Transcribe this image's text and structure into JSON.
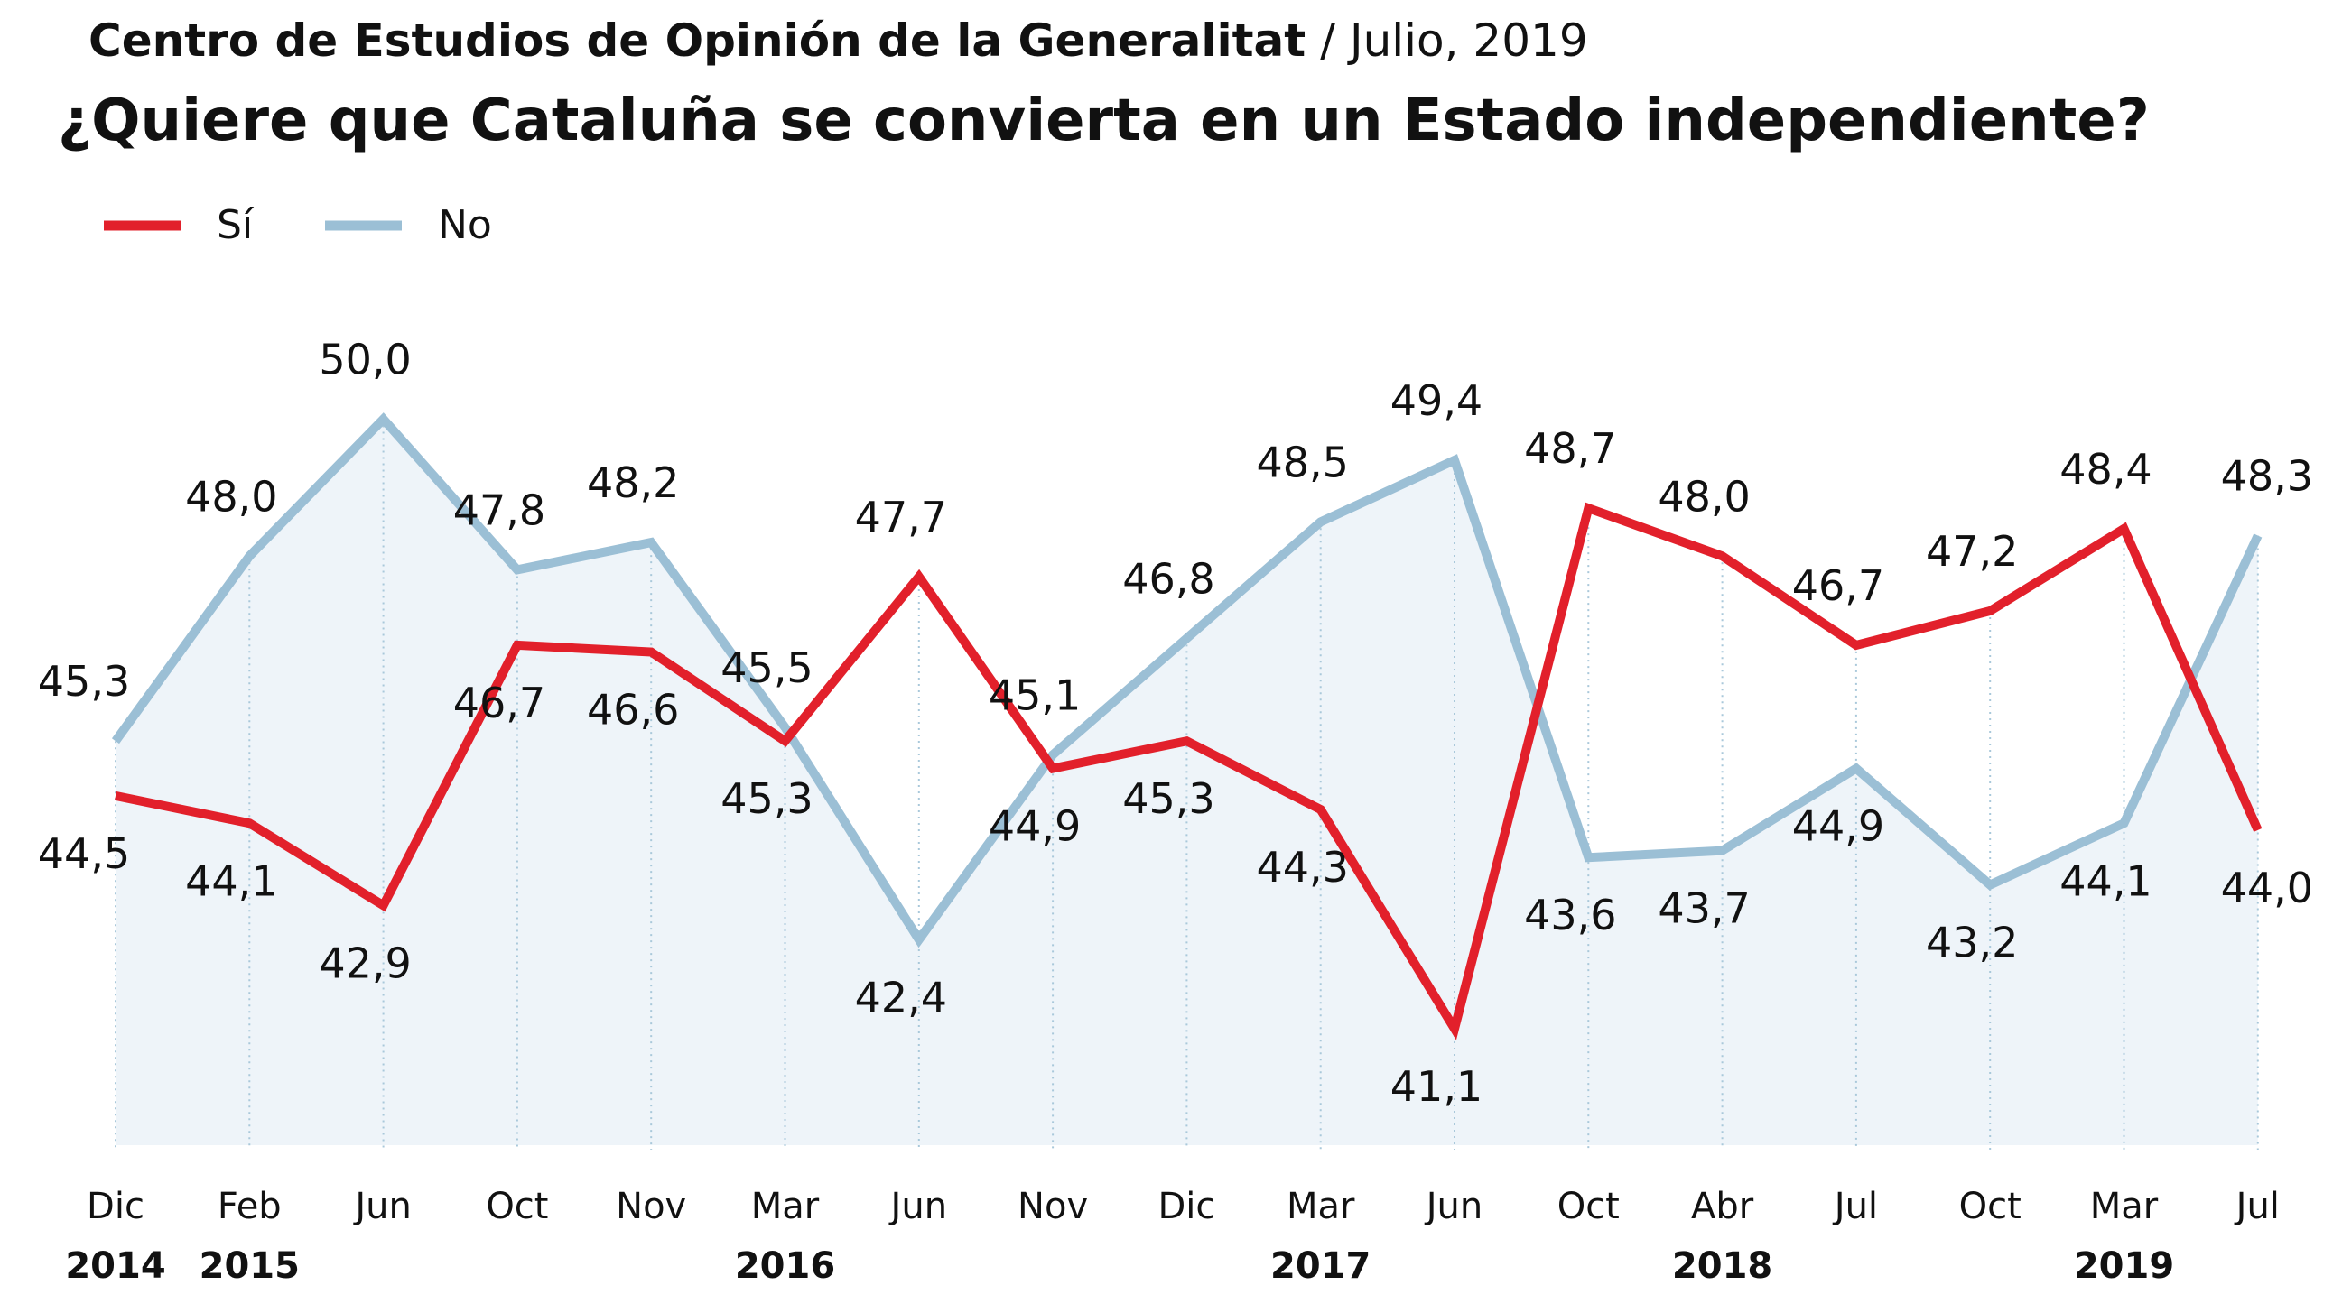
{
  "header": {
    "source": "Centro de Estudios de Opinión de la Generalitat",
    "date": " / Julio, 2019",
    "question": "¿Quiere que Cataluña se convierta en un Estado independiente?"
  },
  "chart_data": {
    "type": "line",
    "title": "¿Quiere que Cataluña se convierta en un Estado independiente?",
    "categories": [
      "Dic",
      "Feb",
      "Jun",
      "Oct",
      "Nov",
      "Mar",
      "Jun",
      "Nov",
      "Dic",
      "Mar",
      "Jun",
      "Oct",
      "Abr",
      "Jul",
      "Oct",
      "Mar",
      "Jul"
    ],
    "year_labels": [
      "2014",
      "2015",
      "",
      "",
      "",
      "2016",
      "",
      "",
      "",
      "2017",
      "",
      "",
      "2018",
      "",
      "",
      "2019",
      ""
    ],
    "series": [
      {
        "name": "Sí",
        "color": "#e2202b",
        "values": [
          44.5,
          44.1,
          42.9,
          46.7,
          46.6,
          45.3,
          47.7,
          44.9,
          45.3,
          44.3,
          41.1,
          48.7,
          48.0,
          46.7,
          47.2,
          48.4,
          44.0
        ]
      },
      {
        "name": "No",
        "color": "#9bbfd5",
        "fill": "#eef4f9",
        "values": [
          45.3,
          48.0,
          50.0,
          47.8,
          48.2,
          45.5,
          42.4,
          45.1,
          46.8,
          48.5,
          49.4,
          43.6,
          43.7,
          44.9,
          43.2,
          44.1,
          48.3
        ]
      }
    ],
    "ylim": [
      39.4,
      50.6
    ],
    "grid": "vertical dotted",
    "legend": "top-left",
    "decimal_separator": ","
  }
}
